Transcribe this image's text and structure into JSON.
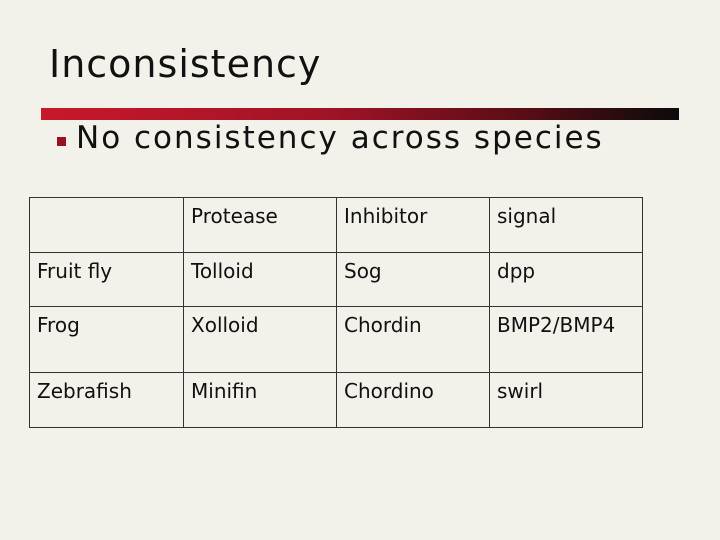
{
  "slide": {
    "title": "Inconsistency",
    "bullet": "No consistency across species"
  },
  "table": {
    "header": [
      "",
      "Protease",
      "Inhibitor",
      "signal"
    ],
    "rows": [
      [
        "Fruit fly",
        "Tolloid",
        "Sog",
        "dpp"
      ],
      [
        "Frog",
        "Xolloid",
        "Chordin",
        "BMP2/BMP4"
      ],
      [
        "Zebrafish",
        "Minifin",
        "Chordino",
        "swirl"
      ]
    ]
  },
  "colors": {
    "background": "#f2f1ea",
    "accent_red": "#c8182b",
    "rule_end": "#0b0b0b",
    "bullet": "#9b1020"
  }
}
